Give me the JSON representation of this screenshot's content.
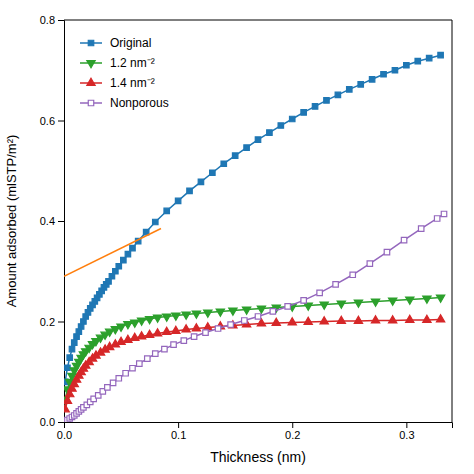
{
  "chart_data": {
    "type": "line",
    "xlabel": "Thickness (nm)",
    "ylabel": "Amount adsorbed (mlSTP/m²)",
    "xlim": [
      0,
      0.34
    ],
    "ylim": [
      0,
      0.8
    ],
    "xticks": [
      {
        "value": 0,
        "label": "0.0"
      },
      0.1,
      0.2,
      0.3
    ],
    "yticks": [
      {
        "value": 0,
        "label": "0.0"
      },
      0.2,
      0.4,
      0.6,
      0.8
    ],
    "grid": false,
    "legend": "upper left",
    "series": [
      {
        "name": "Original",
        "marker": "square",
        "line_style": "solid",
        "x": [
          0.001,
          0.003,
          0.005,
          0.007,
          0.009,
          0.011,
          0.013,
          0.015,
          0.017,
          0.019,
          0.021,
          0.023,
          0.025,
          0.027,
          0.029,
          0.031,
          0.033,
          0.035,
          0.037,
          0.039,
          0.042,
          0.045,
          0.048,
          0.052,
          0.056,
          0.06,
          0.065,
          0.072,
          0.08,
          0.09,
          0.1,
          0.11,
          0.12,
          0.13,
          0.14,
          0.15,
          0.16,
          0.17,
          0.18,
          0.19,
          0.2,
          0.21,
          0.22,
          0.23,
          0.24,
          0.25,
          0.26,
          0.27,
          0.28,
          0.29,
          0.3,
          0.31,
          0.32,
          0.33
        ],
        "values": [
          0.08,
          0.108,
          0.128,
          0.145,
          0.158,
          0.17,
          0.18,
          0.19,
          0.2,
          0.21,
          0.218,
          0.226,
          0.233,
          0.24,
          0.247,
          0.254,
          0.261,
          0.268,
          0.274,
          0.28,
          0.29,
          0.3,
          0.31,
          0.322,
          0.334,
          0.346,
          0.36,
          0.378,
          0.398,
          0.42,
          0.44,
          0.46,
          0.478,
          0.496,
          0.514,
          0.53,
          0.546,
          0.562,
          0.576,
          0.59,
          0.603,
          0.616,
          0.628,
          0.64,
          0.651,
          0.662,
          0.672,
          0.682,
          0.692,
          0.7,
          0.71,
          0.718,
          0.724,
          0.73
        ]
      },
      {
        "line_style": "solid",
        "x": [
          0.0,
          0.085
        ],
        "values": [
          0.29,
          0.385
        ]
      },
      {
        "name": "1.2 nm⁻²",
        "marker": "triangle-down",
        "line_style": "solid",
        "x": [
          0.001,
          0.003,
          0.005,
          0.007,
          0.009,
          0.011,
          0.013,
          0.015,
          0.017,
          0.019,
          0.022,
          0.025,
          0.028,
          0.032,
          0.036,
          0.04,
          0.045,
          0.05,
          0.056,
          0.062,
          0.068,
          0.075,
          0.082,
          0.09,
          0.098,
          0.107,
          0.116,
          0.126,
          0.137,
          0.148,
          0.16,
          0.173,
          0.186,
          0.2,
          0.214,
          0.228,
          0.243,
          0.258,
          0.273,
          0.288,
          0.303,
          0.318,
          0.33
        ],
        "values": [
          0.045,
          0.065,
          0.08,
          0.092,
          0.103,
          0.112,
          0.12,
          0.128,
          0.135,
          0.141,
          0.148,
          0.155,
          0.161,
          0.168,
          0.174,
          0.18,
          0.185,
          0.19,
          0.195,
          0.198,
          0.202,
          0.205,
          0.208,
          0.21,
          0.212,
          0.214,
          0.216,
          0.218,
          0.22,
          0.222,
          0.224,
          0.226,
          0.228,
          0.23,
          0.232,
          0.234,
          0.236,
          0.238,
          0.24,
          0.242,
          0.244,
          0.246,
          0.248
        ]
      },
      {
        "name": "1.4 nm⁻²",
        "marker": "triangle-up",
        "line_style": "solid",
        "x": [
          0.001,
          0.003,
          0.005,
          0.007,
          0.009,
          0.011,
          0.013,
          0.015,
          0.017,
          0.019,
          0.022,
          0.025,
          0.028,
          0.032,
          0.036,
          0.04,
          0.045,
          0.05,
          0.056,
          0.062,
          0.068,
          0.075,
          0.082,
          0.09,
          0.098,
          0.107,
          0.116,
          0.126,
          0.137,
          0.148,
          0.16,
          0.173,
          0.186,
          0.2,
          0.214,
          0.228,
          0.243,
          0.258,
          0.273,
          0.288,
          0.303,
          0.318,
          0.33
        ],
        "values": [
          0.025,
          0.042,
          0.055,
          0.066,
          0.075,
          0.084,
          0.092,
          0.099,
          0.106,
          0.112,
          0.119,
          0.126,
          0.132,
          0.138,
          0.144,
          0.149,
          0.154,
          0.159,
          0.163,
          0.167,
          0.17,
          0.173,
          0.176,
          0.179,
          0.181,
          0.184,
          0.186,
          0.188,
          0.19,
          0.192,
          0.194,
          0.196,
          0.197,
          0.198,
          0.199,
          0.2,
          0.201,
          0.201,
          0.202,
          0.202,
          0.203,
          0.203,
          0.204
        ]
      },
      {
        "name": "Nonporous",
        "marker": "open-square",
        "line_style": "solid",
        "x": [
          0.001,
          0.003,
          0.005,
          0.007,
          0.009,
          0.011,
          0.013,
          0.015,
          0.017,
          0.02,
          0.023,
          0.026,
          0.03,
          0.034,
          0.038,
          0.043,
          0.048,
          0.054,
          0.06,
          0.066,
          0.073,
          0.08,
          0.088,
          0.096,
          0.105,
          0.114,
          0.124,
          0.135,
          0.146,
          0.158,
          0.17,
          0.183,
          0.196,
          0.21,
          0.224,
          0.238,
          0.253,
          0.268,
          0.283,
          0.298,
          0.313,
          0.327,
          0.333
        ],
        "values": [
          0.002,
          0.004,
          0.007,
          0.01,
          0.013,
          0.017,
          0.021,
          0.025,
          0.029,
          0.034,
          0.04,
          0.046,
          0.053,
          0.061,
          0.069,
          0.078,
          0.087,
          0.097,
          0.107,
          0.116,
          0.126,
          0.136,
          0.145,
          0.154,
          0.162,
          0.17,
          0.178,
          0.186,
          0.194,
          0.202,
          0.21,
          0.22,
          0.23,
          0.242,
          0.257,
          0.274,
          0.293,
          0.315,
          0.338,
          0.362,
          0.385,
          0.405,
          0.414
        ]
      }
    ]
  }
}
